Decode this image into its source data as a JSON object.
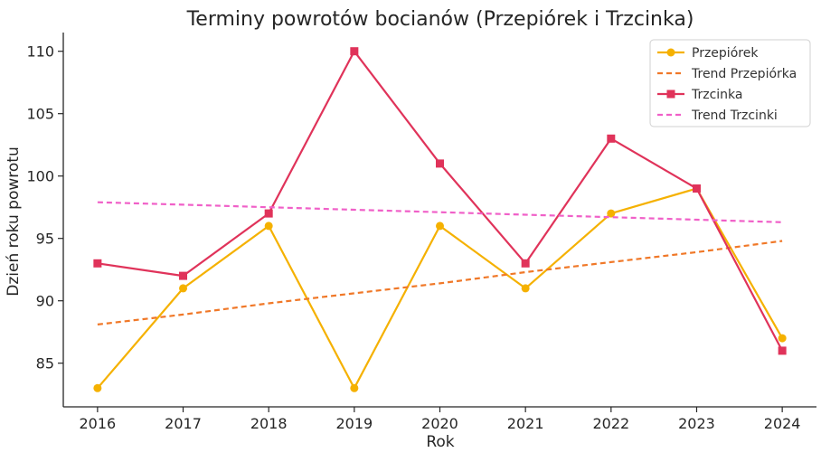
{
  "chart_data": {
    "type": "line",
    "title": "Terminy powrotów bocianów (Przepiórek i Trzcinka)",
    "xlabel": "Rok",
    "ylabel": "Dzień roku powrotu",
    "x": [
      2016,
      2017,
      2018,
      2019,
      2020,
      2021,
      2022,
      2023,
      2024
    ],
    "xlim": [
      2015.6,
      2024.4
    ],
    "ylim": [
      81.5,
      111.5
    ],
    "yticks": [
      85,
      90,
      95,
      100,
      105,
      110
    ],
    "grid": false,
    "legend_position": "top-right",
    "series": [
      {
        "name": "Przepiórek",
        "values": [
          83,
          91,
          96,
          83,
          96,
          91,
          97,
          99,
          87
        ],
        "color": "#f5b100",
        "marker": "circle",
        "dashed": false
      },
      {
        "name": "Trend Przepiórka",
        "values": [
          88.1,
          88.9,
          89.8,
          90.6,
          91.4,
          92.3,
          93.1,
          93.9,
          94.8
        ],
        "color": "#f07828",
        "marker": "none",
        "dashed": true
      },
      {
        "name": "Trzcinka",
        "values": [
          93,
          92,
          97,
          110,
          101,
          93,
          103,
          99,
          86
        ],
        "color": "#e0335a",
        "marker": "square",
        "dashed": false
      },
      {
        "name": "Trend Trzcinki",
        "values": [
          97.9,
          97.7,
          97.5,
          97.3,
          97.1,
          96.9,
          96.7,
          96.5,
          96.3
        ],
        "color": "#f060c8",
        "marker": "none",
        "dashed": true
      }
    ]
  }
}
